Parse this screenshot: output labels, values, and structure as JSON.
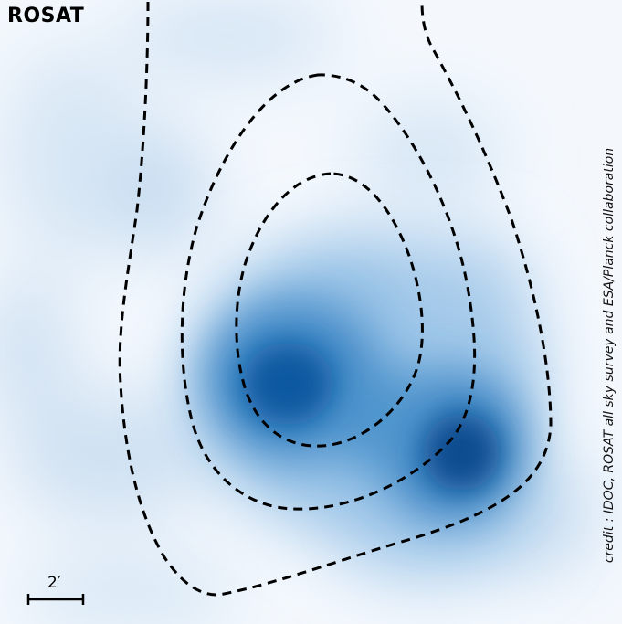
{
  "image": {
    "instrument_label": "ROSAT",
    "credit": "credit : IDOC, ROSAT all sky survey and ESA/Planck collaboration",
    "scale_bar_label": "2′",
    "colors": {
      "background": "#f4f8fd",
      "emission_faint": "#c6dcf0",
      "emission_mid": "#5b9fd3",
      "emission_peak": "#0a4f95",
      "contours": "#000000"
    },
    "contour_style": "dashed",
    "contour_count": 3
  }
}
